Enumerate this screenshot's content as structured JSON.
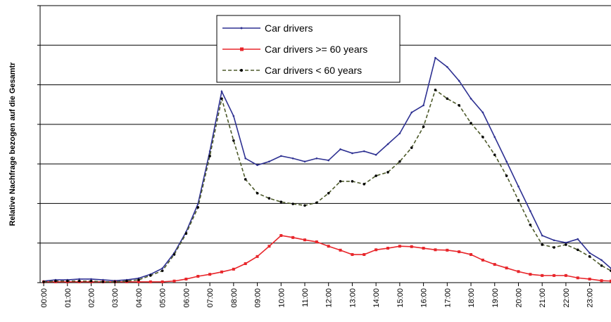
{
  "chart_data": {
    "type": "line",
    "y_label": "Relative Nachfrage bezogen auf die Gesamtr",
    "x": [
      0,
      0.5,
      1,
      1.5,
      2,
      2.5,
      3,
      3.5,
      4,
      4.5,
      5,
      5.5,
      6,
      6.5,
      7,
      7.5,
      8,
      8.5,
      9,
      9.5,
      10,
      10.5,
      11,
      11.5,
      12,
      12.5,
      13,
      13.5,
      14,
      14.5,
      15,
      15.5,
      16,
      16.5,
      17,
      17.5,
      18,
      18.5,
      19,
      19.5,
      20,
      20.5,
      21,
      21.5,
      22,
      22.5,
      23,
      23.5,
      23.9
    ],
    "series": [
      {
        "name": "Car drivers",
        "color": "#2e3192",
        "style": "solid",
        "marker": "dot",
        "values": [
          0.04,
          0.07,
          0.07,
          0.09,
          0.09,
          0.07,
          0.05,
          0.07,
          0.11,
          0.21,
          0.36,
          0.75,
          1.28,
          1.99,
          3.32,
          4.83,
          4.21,
          3.14,
          2.97,
          3.06,
          3.2,
          3.14,
          3.06,
          3.14,
          3.09,
          3.37,
          3.27,
          3.32,
          3.23,
          3.5,
          3.77,
          4.3,
          4.48,
          5.68,
          5.45,
          5.1,
          4.65,
          4.3,
          3.68,
          3.06,
          2.43,
          1.81,
          1.19,
          1.07,
          1.01,
          1.1,
          0.75,
          0.57,
          0.36
        ]
      },
      {
        "name": "Car drivers >= 60 years",
        "color": "#e8262b",
        "style": "solid",
        "marker": "square",
        "values": [
          0.02,
          0.02,
          0.02,
          0.02,
          0.02,
          0.02,
          0.02,
          0.02,
          0.02,
          0.02,
          0.02,
          0.04,
          0.09,
          0.16,
          0.21,
          0.27,
          0.34,
          0.48,
          0.66,
          0.92,
          1.19,
          1.14,
          1.08,
          1.03,
          0.92,
          0.82,
          0.71,
          0.71,
          0.83,
          0.87,
          0.92,
          0.91,
          0.87,
          0.83,
          0.82,
          0.78,
          0.71,
          0.57,
          0.46,
          0.37,
          0.28,
          0.21,
          0.18,
          0.18,
          0.18,
          0.12,
          0.09,
          0.05,
          0.04
        ]
      },
      {
        "name": "Car drivers < 60 years",
        "color": "#4d5a2a",
        "style": "dashed",
        "marker": "dot-black",
        "values": [
          0.02,
          0.04,
          0.04,
          0.04,
          0.04,
          0.02,
          0.02,
          0.04,
          0.07,
          0.18,
          0.3,
          0.71,
          1.24,
          1.9,
          3.2,
          4.65,
          3.59,
          2.61,
          2.26,
          2.13,
          2.04,
          1.99,
          1.95,
          2.02,
          2.26,
          2.56,
          2.56,
          2.49,
          2.7,
          2.79,
          3.06,
          3.41,
          3.94,
          4.87,
          4.65,
          4.48,
          4.03,
          3.68,
          3.23,
          2.7,
          2.08,
          1.46,
          0.96,
          0.89,
          0.96,
          0.83,
          0.66,
          0.43,
          0.3
        ]
      }
    ],
    "xlim": [
      -0.15,
      23.9
    ],
    "xticks": [
      {
        "value": 0,
        "label": "00:00"
      },
      {
        "value": 1,
        "label": "01:00"
      },
      {
        "value": 2,
        "label": "02:00"
      },
      {
        "value": 3,
        "label": "03:00"
      },
      {
        "value": 4,
        "label": "04:00"
      },
      {
        "value": 5,
        "label": "05:00"
      },
      {
        "value": 6,
        "label": "06:00"
      },
      {
        "value": 7,
        "label": "07:00"
      },
      {
        "value": 8,
        "label": "08:00"
      },
      {
        "value": 9,
        "label": "09:00"
      },
      {
        "value": 10,
        "label": "10:00"
      },
      {
        "value": 11,
        "label": "11:00"
      },
      {
        "value": 12,
        "label": "12:00"
      },
      {
        "value": 13,
        "label": "13:00"
      },
      {
        "value": 14,
        "label": "14:00"
      },
      {
        "value": 15,
        "label": "15:00"
      },
      {
        "value": 16,
        "label": "16:00"
      },
      {
        "value": 17,
        "label": "17:00"
      },
      {
        "value": 18,
        "label": "18:00"
      },
      {
        "value": 19,
        "label": "19:00"
      },
      {
        "value": 20,
        "label": "20:00"
      },
      {
        "value": 21,
        "label": "21:00"
      },
      {
        "value": 22,
        "label": "22:00"
      },
      {
        "value": 23,
        "label": "23:00"
      }
    ],
    "ylim": [
      0,
      7
    ],
    "yticks": [
      0,
      1,
      2,
      3,
      4,
      5,
      6,
      7
    ],
    "grid": true,
    "legend": "top-center"
  }
}
